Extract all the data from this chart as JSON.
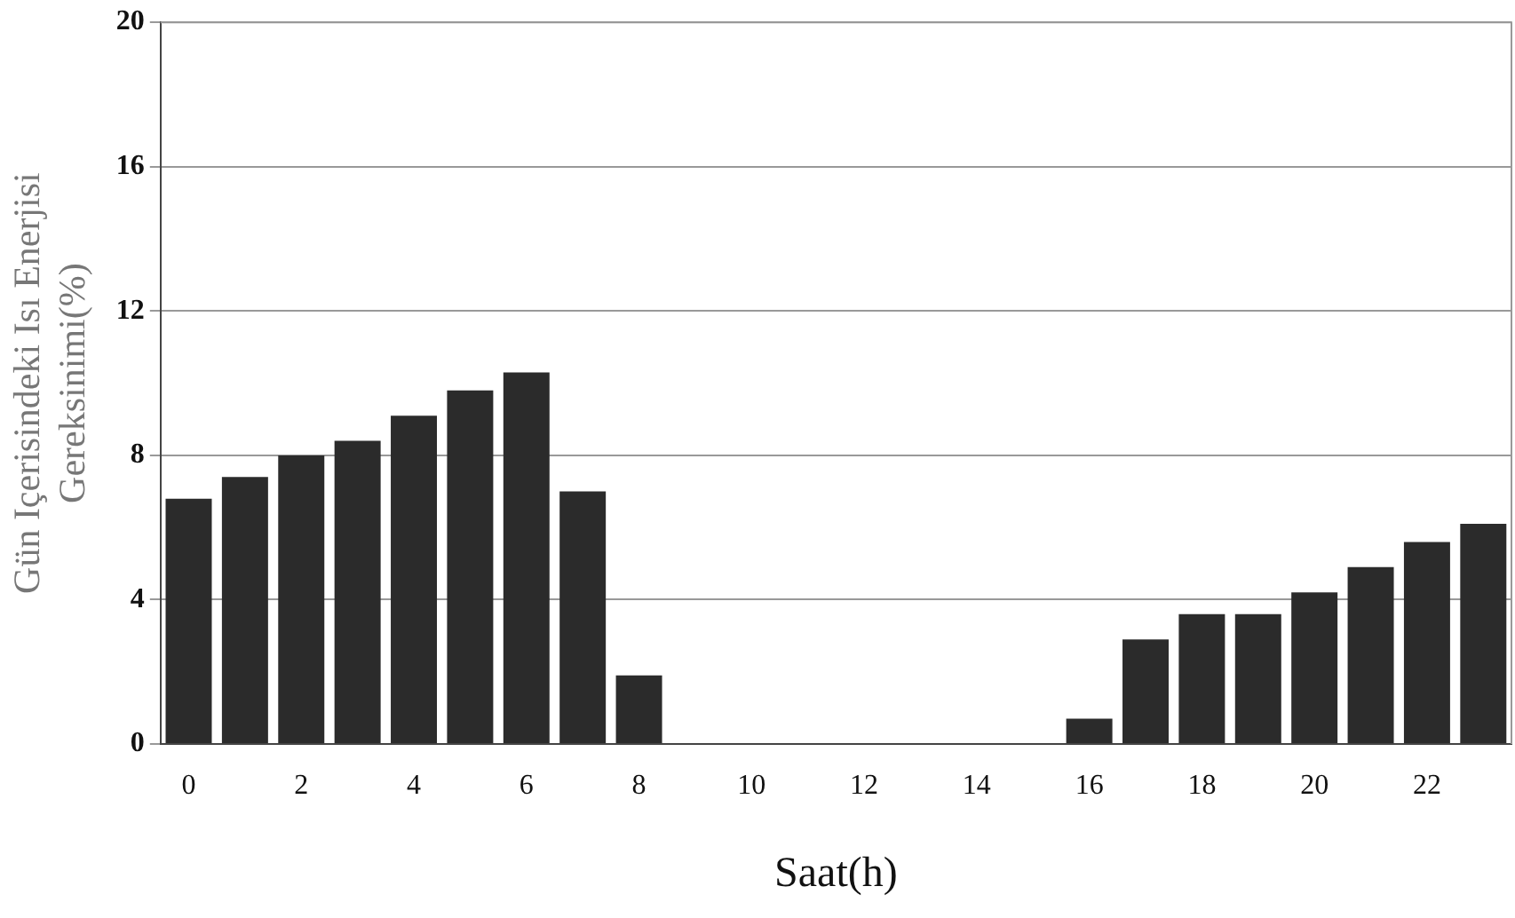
{
  "chart_data": {
    "type": "bar",
    "xlabel": "Saat(h)",
    "ylabel": "Gün Içerisindeki Isı Enerjisi\nGereksinimi(%)",
    "categories": [
      "0",
      null,
      "2",
      null,
      "4",
      null,
      "6",
      null,
      "8",
      null,
      "10",
      null,
      "12",
      null,
      "14",
      null,
      "16",
      null,
      "18",
      null,
      "20",
      null,
      "22",
      null
    ],
    "values": [
      6.8,
      7.4,
      8.0,
      8.4,
      9.1,
      9.8,
      10.3,
      7.0,
      1.9,
      0,
      0,
      0,
      0,
      0,
      0,
      0,
      0.7,
      2.9,
      3.6,
      3.6,
      4.2,
      4.9,
      5.6,
      6.1
    ],
    "color": "#2b2b2b",
    "ylim": [
      0,
      20
    ],
    "yticks": [
      0,
      4,
      8,
      12,
      16,
      20
    ],
    "grid": "y",
    "legend": false
  }
}
